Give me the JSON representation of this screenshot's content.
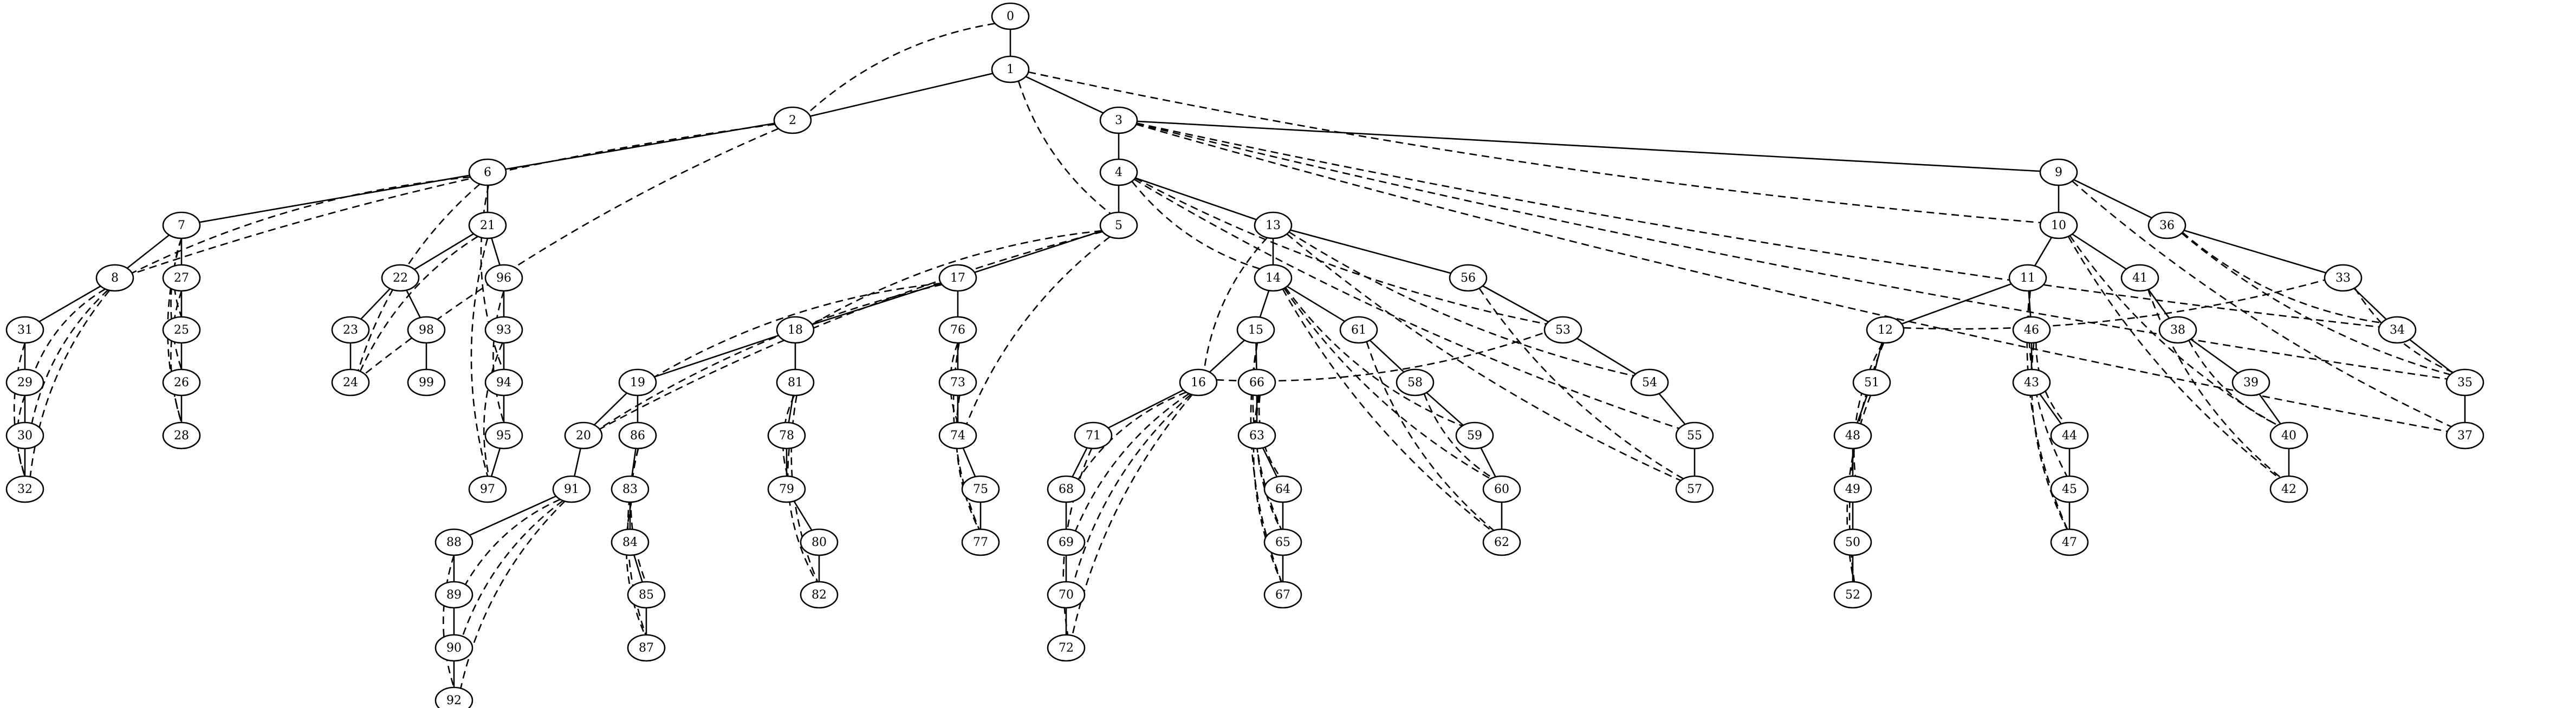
{
  "labels": {
    "0": "0",
    "1": "1",
    "2": "2",
    "3": "3",
    "4": "4",
    "5": "5",
    "6": "6",
    "7": "7",
    "8": "8",
    "9": "9",
    "10": "10",
    "11": "11",
    "12": "12",
    "13": "13",
    "14": "14",
    "15": "15",
    "16": "16",
    "17": "17",
    "18": "18",
    "19": "19",
    "20": "20",
    "21": "21",
    "22": "22",
    "23": "23",
    "24": "24",
    "25": "25",
    "26": "26",
    "27": "27",
    "28": "28",
    "29": "29",
    "30": "30",
    "31": "31",
    "32": "32",
    "33": "33",
    "34": "34",
    "35": "35",
    "36": "36",
    "37": "37",
    "38": "38",
    "39": "39",
    "40": "40",
    "41": "41",
    "42": "42",
    "43": "43",
    "44": "44",
    "45": "45",
    "46": "46",
    "47": "47",
    "48": "48",
    "49": "49",
    "50": "50",
    "51": "51",
    "52": "52",
    "53": "53",
    "54": "54",
    "55": "55",
    "56": "56",
    "57": "57",
    "58": "58",
    "59": "59",
    "60": "60",
    "61": "61",
    "62": "62",
    "63": "63",
    "64": "64",
    "65": "65",
    "66": "66",
    "67": "67",
    "68": "68",
    "69": "69",
    "70": "70",
    "71": "71",
    "72": "72",
    "73": "73",
    "74": "74",
    "75": "75",
    "76": "76",
    "77": "77",
    "78": "78",
    "79": "79",
    "80": "80",
    "81": "81",
    "82": "82",
    "83": "83",
    "84": "84",
    "85": "85",
    "86": "86",
    "87": "87",
    "88": "88",
    "89": "89",
    "90": "90",
    "91": "91",
    "92": "92",
    "93": "93",
    "94": "94",
    "95": "95",
    "96": "96",
    "97": "97",
    "98": "98",
    "99": "99"
  },
  "tree_edges": [
    [
      "0",
      "1"
    ],
    [
      "1",
      "2"
    ],
    [
      "1",
      "3"
    ],
    [
      "2",
      "6"
    ],
    [
      "3",
      "4"
    ],
    [
      "3",
      "9"
    ],
    [
      "4",
      "5"
    ],
    [
      "4",
      "13"
    ],
    [
      "5",
      "17"
    ],
    [
      "6",
      "7"
    ],
    [
      "6",
      "21"
    ],
    [
      "7",
      "8"
    ],
    [
      "7",
      "27"
    ],
    [
      "8",
      "31"
    ],
    [
      "31",
      "29"
    ],
    [
      "29",
      "30"
    ],
    [
      "30",
      "32"
    ],
    [
      "27",
      "25"
    ],
    [
      "25",
      "26"
    ],
    [
      "26",
      "28"
    ],
    [
      "21",
      "22"
    ],
    [
      "21",
      "96"
    ],
    [
      "22",
      "23"
    ],
    [
      "22",
      "98"
    ],
    [
      "23",
      "24"
    ],
    [
      "98",
      "99"
    ],
    [
      "96",
      "93"
    ],
    [
      "93",
      "94"
    ],
    [
      "94",
      "95"
    ],
    [
      "95",
      "97"
    ],
    [
      "17",
      "18"
    ],
    [
      "17",
      "76"
    ],
    [
      "18",
      "19"
    ],
    [
      "18",
      "81"
    ],
    [
      "19",
      "20"
    ],
    [
      "19",
      "86"
    ],
    [
      "20",
      "91"
    ],
    [
      "91",
      "88"
    ],
    [
      "88",
      "89"
    ],
    [
      "89",
      "90"
    ],
    [
      "90",
      "92"
    ],
    [
      "86",
      "83"
    ],
    [
      "83",
      "84"
    ],
    [
      "84",
      "85"
    ],
    [
      "85",
      "87"
    ],
    [
      "81",
      "78"
    ],
    [
      "78",
      "79"
    ],
    [
      "79",
      "80"
    ],
    [
      "80",
      "82"
    ],
    [
      "76",
      "73"
    ],
    [
      "73",
      "74"
    ],
    [
      "74",
      "75"
    ],
    [
      "75",
      "77"
    ],
    [
      "13",
      "14"
    ],
    [
      "13",
      "56"
    ],
    [
      "14",
      "15"
    ],
    [
      "14",
      "61"
    ],
    [
      "15",
      "16"
    ],
    [
      "15",
      "66"
    ],
    [
      "16",
      "71"
    ],
    [
      "71",
      "68"
    ],
    [
      "68",
      "69"
    ],
    [
      "69",
      "70"
    ],
    [
      "70",
      "72"
    ],
    [
      "66",
      "63"
    ],
    [
      "63",
      "64"
    ],
    [
      "64",
      "65"
    ],
    [
      "65",
      "67"
    ],
    [
      "61",
      "58"
    ],
    [
      "58",
      "59"
    ],
    [
      "59",
      "60"
    ],
    [
      "60",
      "62"
    ],
    [
      "56",
      "53"
    ],
    [
      "53",
      "54"
    ],
    [
      "54",
      "55"
    ],
    [
      "55",
      "57"
    ],
    [
      "9",
      "10"
    ],
    [
      "9",
      "36"
    ],
    [
      "10",
      "11"
    ],
    [
      "10",
      "41"
    ],
    [
      "11",
      "12"
    ],
    [
      "11",
      "46"
    ],
    [
      "12",
      "51"
    ],
    [
      "51",
      "48"
    ],
    [
      "48",
      "49"
    ],
    [
      "49",
      "50"
    ],
    [
      "50",
      "52"
    ],
    [
      "46",
      "43"
    ],
    [
      "43",
      "44"
    ],
    [
      "44",
      "45"
    ],
    [
      "45",
      "47"
    ],
    [
      "41",
      "38"
    ],
    [
      "38",
      "39"
    ],
    [
      "39",
      "40"
    ],
    [
      "40",
      "42"
    ],
    [
      "36",
      "33"
    ],
    [
      "33",
      "34"
    ],
    [
      "34",
      "35"
    ],
    [
      "35",
      "37"
    ]
  ],
  "back_edges": [
    [
      "0",
      "2"
    ],
    [
      "1",
      "5"
    ],
    [
      "1",
      "10"
    ],
    [
      "6",
      "8"
    ],
    [
      "2",
      "8"
    ],
    [
      "8",
      "29"
    ],
    [
      "8",
      "30"
    ],
    [
      "8",
      "32"
    ],
    [
      "31",
      "32"
    ],
    [
      "29",
      "32"
    ],
    [
      "7",
      "25"
    ],
    [
      "7",
      "26"
    ],
    [
      "7",
      "28"
    ],
    [
      "27",
      "28"
    ],
    [
      "6",
      "24"
    ],
    [
      "21",
      "24"
    ],
    [
      "2",
      "24"
    ],
    [
      "6",
      "94"
    ],
    [
      "21",
      "97"
    ],
    [
      "96",
      "95"
    ],
    [
      "93",
      "97"
    ],
    [
      "5",
      "18"
    ],
    [
      "5",
      "20"
    ],
    [
      "5",
      "74"
    ],
    [
      "17",
      "20"
    ],
    [
      "17",
      "19"
    ],
    [
      "76",
      "77"
    ],
    [
      "73",
      "77"
    ],
    [
      "76",
      "74"
    ],
    [
      "81",
      "82"
    ],
    [
      "78",
      "82"
    ],
    [
      "81",
      "79"
    ],
    [
      "86",
      "87"
    ],
    [
      "83",
      "87"
    ],
    [
      "86",
      "85"
    ],
    [
      "91",
      "89"
    ],
    [
      "91",
      "90"
    ],
    [
      "91",
      "92"
    ],
    [
      "88",
      "92"
    ],
    [
      "16",
      "68"
    ],
    [
      "16",
      "69"
    ],
    [
      "16",
      "70"
    ],
    [
      "16",
      "72"
    ],
    [
      "71",
      "72"
    ],
    [
      "15",
      "65"
    ],
    [
      "15",
      "67"
    ],
    [
      "66",
      "64"
    ],
    [
      "66",
      "65"
    ],
    [
      "66",
      "67"
    ],
    [
      "14",
      "59"
    ],
    [
      "14",
      "60"
    ],
    [
      "14",
      "62"
    ],
    [
      "61",
      "62"
    ],
    [
      "58",
      "60"
    ],
    [
      "4",
      "53"
    ],
    [
      "4",
      "55"
    ],
    [
      "13",
      "57"
    ],
    [
      "13",
      "54"
    ],
    [
      "56",
      "57"
    ],
    [
      "13",
      "16"
    ],
    [
      "16",
      "53"
    ],
    [
      "3",
      "34"
    ],
    [
      "3",
      "35"
    ],
    [
      "3",
      "37"
    ],
    [
      "9",
      "37"
    ],
    [
      "36",
      "35"
    ],
    [
      "36",
      "34"
    ],
    [
      "33",
      "35"
    ],
    [
      "10",
      "40"
    ],
    [
      "10",
      "42"
    ],
    [
      "41",
      "42"
    ],
    [
      "38",
      "40"
    ],
    [
      "11",
      "45"
    ],
    [
      "11",
      "47"
    ],
    [
      "46",
      "44"
    ],
    [
      "46",
      "47"
    ],
    [
      "12",
      "49"
    ],
    [
      "12",
      "52"
    ],
    [
      "51",
      "52"
    ],
    [
      "12",
      "33"
    ],
    [
      "4",
      "14"
    ]
  ]
}
